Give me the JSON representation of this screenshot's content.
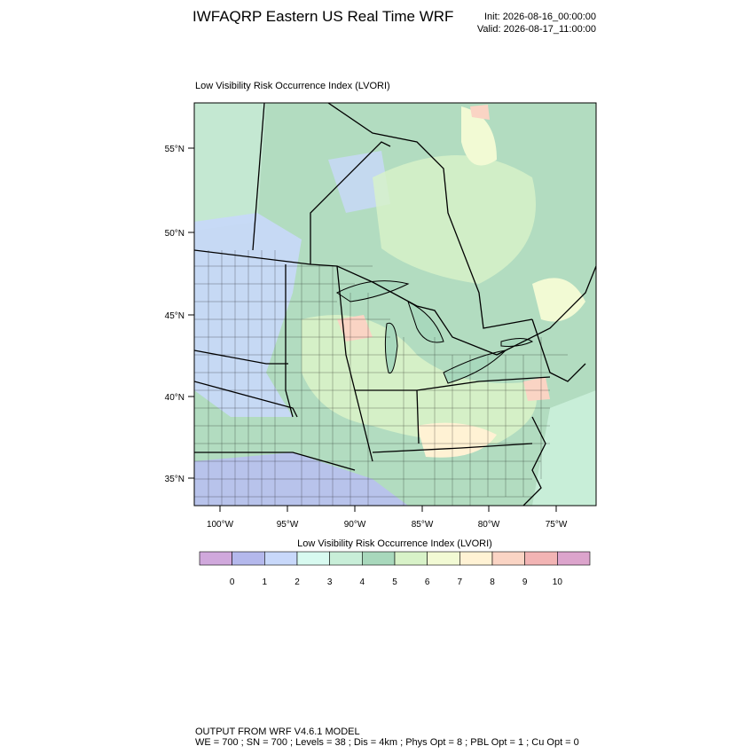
{
  "header": {
    "title": "IWFAQRP Eastern US Real Time WRF",
    "init": "Init: 2026-08-16_00:00:00",
    "valid": "Valid: 2026-08-17_11:00:00"
  },
  "map": {
    "subtitle": "Low Visibility Risk Occurrence Index   (LVORI)",
    "lat_labels": [
      "55°N",
      "50°N",
      "45°N",
      "40°N",
      "35°N"
    ],
    "lon_labels": [
      "100°W",
      "95°W",
      "90°W",
      "85°W",
      "80°W",
      "75°W"
    ]
  },
  "colorbar": {
    "title": "Low Visibility Risk Occurrence Index  (LVORI)",
    "colors": [
      "#d0a8dc",
      "#b4b8ec",
      "#c8d8fa",
      "#d8faf0",
      "#c8eed8",
      "#a8d8bc",
      "#d8f2c8",
      "#f2fad4",
      "#fff2d4",
      "#fad4c4",
      "#f2b4b4",
      "#dca4cc"
    ],
    "labels": [
      0,
      1,
      2,
      3,
      4,
      5,
      6,
      7,
      8,
      9,
      10
    ]
  },
  "footer": {
    "line1": "OUTPUT FROM WRF V4.6.1 MODEL",
    "line2": "WE = 700 ; SN = 700 ; Levels = 38 ; Dis = 4km ; Phys Opt = 8 ; PBL Opt = 1 ; Cu Opt = 0"
  }
}
